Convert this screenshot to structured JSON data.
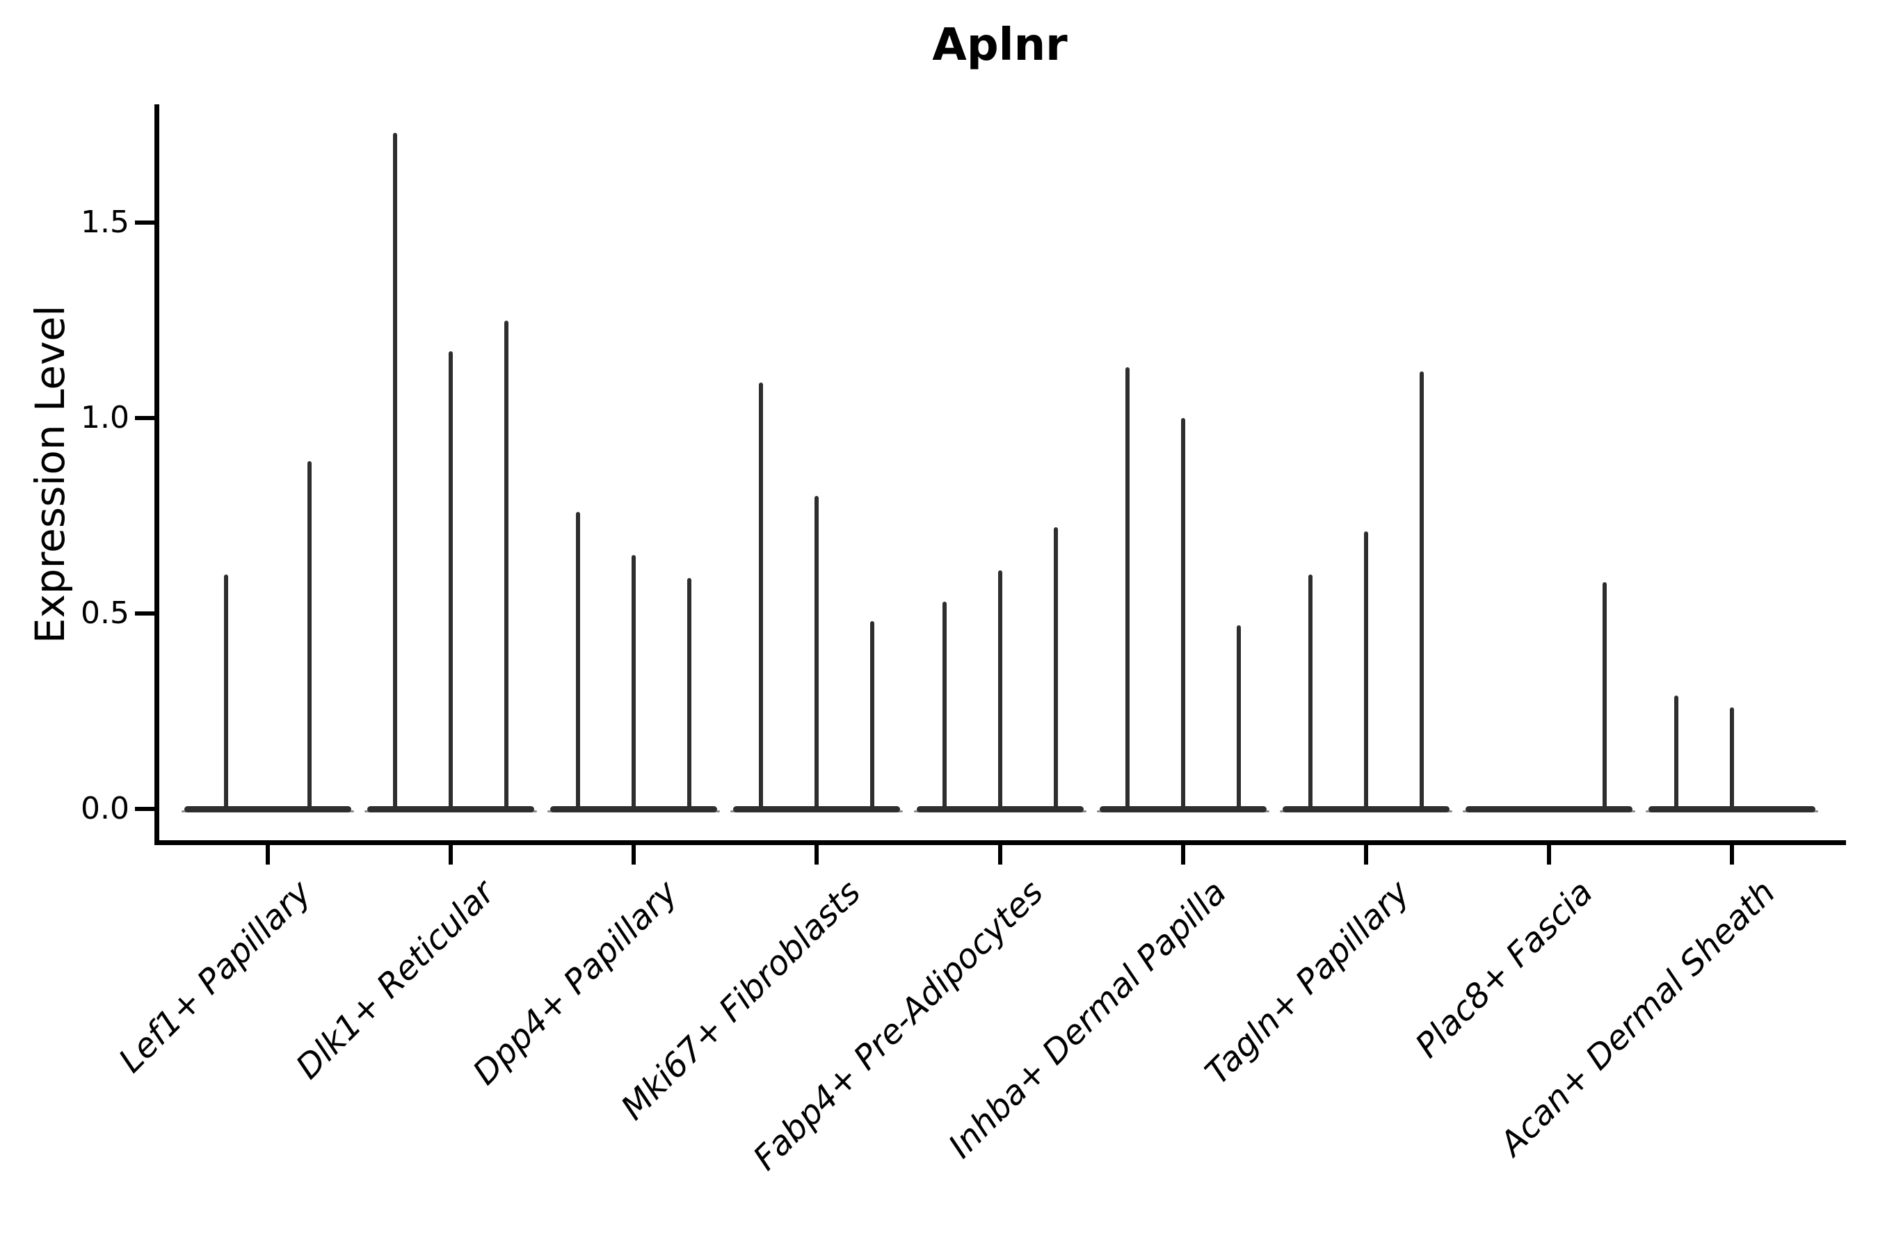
{
  "chart_data": {
    "type": "violin",
    "title": "Aplnr",
    "xlabel": "",
    "ylabel": "Expression Level",
    "ytick_labels": [
      "0.0",
      "0.5",
      "1.0",
      "1.5"
    ],
    "ytick_values": [
      0.0,
      0.5,
      1.0,
      1.5
    ],
    "ylim": [
      -0.09,
      1.8
    ],
    "grid": false,
    "legend": "none",
    "description": "Sparse single-cell expression violin plot; each category shows a flat violin base at 0 with thin density spikes, one spike per violin (sub-group). Spike values are the maximum expression level reached.",
    "categories": [
      {
        "label": "Lef1+ Papillary",
        "spike_heights": [
          0.6,
          0.89
        ]
      },
      {
        "label": "Dlk1+ Reticular",
        "spike_heights": [
          1.73,
          1.17,
          1.25
        ]
      },
      {
        "label": "Dpp4+ Papillary",
        "spike_heights": [
          0.76,
          0.65,
          0.59
        ]
      },
      {
        "label": "Mki67+ Fibroblasts",
        "spike_heights": [
          1.09,
          0.8,
          0.48
        ]
      },
      {
        "label": "Fabp4+ Pre-Adipocytes",
        "spike_heights": [
          0.53,
          0.61,
          0.72
        ]
      },
      {
        "label": "Inhba+ Dermal Papilla",
        "spike_heights": [
          1.13,
          1.0,
          0.47
        ]
      },
      {
        "label": "Tagln+ Papillary",
        "spike_heights": [
          0.6,
          0.71,
          1.12
        ]
      },
      {
        "label": "Plac8+ Fascia",
        "spike_heights": [
          0,
          0,
          0.58
        ]
      },
      {
        "label": "Acan+ Dermal Sheath",
        "spike_heights": [
          0.29,
          0.26,
          0
        ]
      }
    ],
    "colors": {
      "violin": "#2e2e2e",
      "axis": "#000000",
      "text": "#000000",
      "background": "#ffffff"
    }
  }
}
